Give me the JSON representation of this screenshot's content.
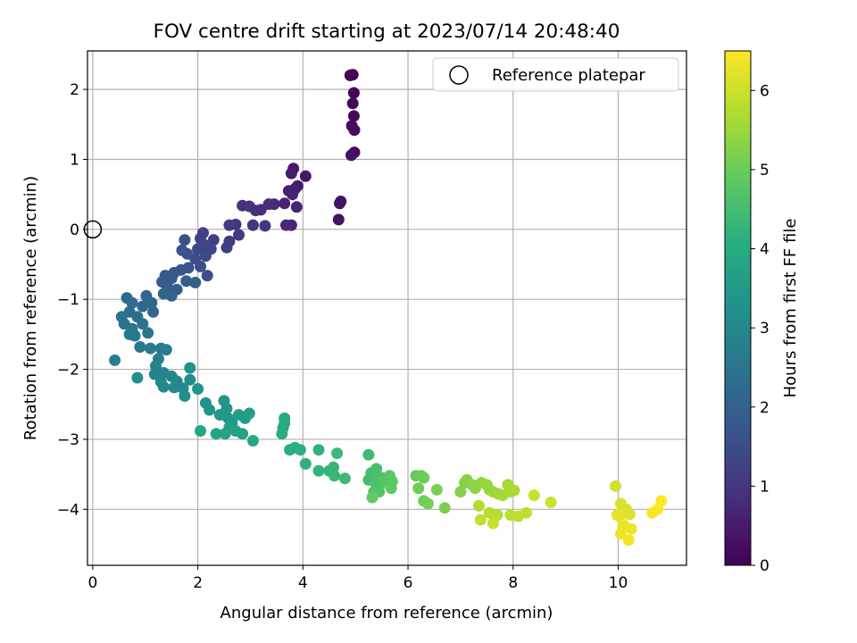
{
  "chart_data": {
    "type": "scatter",
    "title": "FOV centre drift starting at 2023/07/14 20:48:40",
    "xlabel": "Angular distance from reference (arcmin)",
    "ylabel": "Rotation from reference (arcmin)",
    "xlim": [
      -0.1,
      11.3
    ],
    "ylim": [
      -4.8,
      2.55
    ],
    "xticks": [
      0,
      2,
      4,
      6,
      8,
      10
    ],
    "yticks": [
      -4,
      -3,
      -2,
      -1,
      0,
      1,
      2
    ],
    "grid": true,
    "legend": {
      "placement": "top-right",
      "entries": [
        "Reference platepar"
      ]
    },
    "colorbar": {
      "label": "Hours from first FF file",
      "colormap": "viridis",
      "range": [
        0,
        6.5
      ],
      "ticks": [
        0,
        1,
        2,
        3,
        4,
        5,
        6
      ]
    },
    "reference_point": {
      "x": 0,
      "y": 0
    },
    "series": [
      {
        "points": [
          [
            4.9,
            2.2
          ],
          [
            4.95,
            2.21
          ],
          [
            4.97,
            1.95
          ],
          [
            4.95,
            1.8
          ],
          [
            4.97,
            1.62
          ],
          [
            4.93,
            1.48
          ],
          [
            4.98,
            1.42
          ],
          [
            4.98,
            1.1
          ],
          [
            4.92,
            1.06
          ],
          [
            4.72,
            0.4
          ],
          [
            4.7,
            0.37
          ],
          [
            4.68,
            0.14
          ],
          [
            4.05,
            0.76
          ],
          [
            3.82,
            0.87
          ],
          [
            3.78,
            0.8
          ],
          [
            3.9,
            0.62
          ],
          [
            3.85,
            0.58
          ],
          [
            3.73,
            0.55
          ],
          [
            3.8,
            0.5
          ],
          [
            3.65,
            0.37
          ],
          [
            3.88,
            0.32
          ],
          [
            3.78,
            0.06
          ],
          [
            3.68,
            0.06
          ],
          [
            3.45,
            0.36
          ],
          [
            3.35,
            0.36
          ],
          [
            3.2,
            0.28
          ],
          [
            3.1,
            0.27
          ],
          [
            2.85,
            0.34
          ],
          [
            2.98,
            0.33
          ],
          [
            3.05,
            0.06
          ],
          [
            3.28,
            0.05
          ],
          [
            2.72,
            0.07
          ],
          [
            2.6,
            0.06
          ],
          [
            2.78,
            -0.08
          ],
          [
            2.6,
            -0.17
          ],
          [
            2.55,
            -0.26
          ],
          [
            2.3,
            -0.15
          ],
          [
            2.1,
            -0.05
          ],
          [
            2.05,
            -0.13
          ],
          [
            2.12,
            -0.22
          ],
          [
            2.0,
            -0.28
          ],
          [
            2.25,
            -0.28
          ],
          [
            2.15,
            -0.38
          ],
          [
            1.95,
            -0.42
          ],
          [
            2.05,
            -0.53
          ],
          [
            2.18,
            -0.66
          ],
          [
            1.75,
            -0.15
          ],
          [
            1.8,
            -0.35
          ],
          [
            1.7,
            -0.3
          ],
          [
            1.82,
            -0.55
          ],
          [
            1.68,
            -0.58
          ],
          [
            1.55,
            -0.62
          ],
          [
            1.5,
            -0.7
          ],
          [
            1.38,
            -0.66
          ],
          [
            1.32,
            -0.75
          ],
          [
            1.42,
            -0.82
          ],
          [
            1.6,
            -0.86
          ],
          [
            1.78,
            -0.74
          ],
          [
            1.95,
            -0.76
          ],
          [
            1.5,
            -0.95
          ],
          [
            1.35,
            -0.92
          ],
          [
            1.02,
            -0.95
          ],
          [
            1.12,
            -1.05
          ],
          [
            1.15,
            -1.18
          ],
          [
            0.95,
            -1.1
          ],
          [
            0.65,
            -0.98
          ],
          [
            0.75,
            -1.05
          ],
          [
            0.7,
            -1.18
          ],
          [
            0.85,
            -1.25
          ],
          [
            0.55,
            -1.25
          ],
          [
            0.6,
            -1.35
          ],
          [
            0.95,
            -1.35
          ],
          [
            0.75,
            -1.42
          ],
          [
            0.8,
            -1.52
          ],
          [
            0.7,
            -1.5
          ],
          [
            1.05,
            -1.48
          ],
          [
            0.9,
            -1.68
          ],
          [
            1.1,
            -1.7
          ],
          [
            1.3,
            -1.7
          ],
          [
            1.4,
            -1.72
          ],
          [
            1.25,
            -1.85
          ],
          [
            0.42,
            -1.87
          ],
          [
            1.2,
            -1.95
          ],
          [
            1.35,
            -2.05
          ],
          [
            1.18,
            -2.07
          ],
          [
            1.3,
            -2.18
          ],
          [
            1.5,
            -2.1
          ],
          [
            1.6,
            -2.17
          ],
          [
            1.35,
            -2.25
          ],
          [
            1.55,
            -2.26
          ],
          [
            1.72,
            -2.27
          ],
          [
            1.85,
            -2.15
          ],
          [
            1.75,
            -2.38
          ],
          [
            0.85,
            -2.12
          ],
          [
            1.85,
            -1.98
          ],
          [
            2.0,
            -2.28
          ],
          [
            2.15,
            -2.48
          ],
          [
            2.22,
            -2.58
          ],
          [
            2.5,
            -2.45
          ],
          [
            2.55,
            -2.56
          ],
          [
            2.42,
            -2.65
          ],
          [
            2.58,
            -2.7
          ],
          [
            2.65,
            -2.77
          ],
          [
            2.78,
            -2.65
          ],
          [
            2.9,
            -2.7
          ],
          [
            2.98,
            -2.63
          ],
          [
            2.6,
            -2.83
          ],
          [
            2.72,
            -2.88
          ],
          [
            2.85,
            -2.92
          ],
          [
            2.52,
            -2.92
          ],
          [
            2.35,
            -2.92
          ],
          [
            2.05,
            -2.88
          ],
          [
            3.05,
            -3.02
          ],
          [
            3.65,
            -2.7
          ],
          [
            3.65,
            -2.77
          ],
          [
            3.62,
            -2.84
          ],
          [
            3.6,
            -2.92
          ],
          [
            3.75,
            -3.15
          ],
          [
            3.85,
            -3.12
          ],
          [
            3.95,
            -3.15
          ],
          [
            4.05,
            -3.35
          ],
          [
            4.3,
            -3.15
          ],
          [
            4.3,
            -3.45
          ],
          [
            4.5,
            -3.45
          ],
          [
            4.58,
            -3.4
          ],
          [
            4.6,
            -3.52
          ],
          [
            4.65,
            -3.2
          ],
          [
            4.8,
            -3.56
          ],
          [
            5.25,
            -3.22
          ],
          [
            5.25,
            -3.58
          ],
          [
            5.3,
            -3.48
          ],
          [
            5.35,
            -3.5
          ],
          [
            5.4,
            -3.42
          ],
          [
            5.38,
            -3.62
          ],
          [
            5.45,
            -3.68
          ],
          [
            5.5,
            -3.55
          ],
          [
            5.35,
            -3.75
          ],
          [
            5.45,
            -3.75
          ],
          [
            5.55,
            -3.6
          ],
          [
            5.65,
            -3.52
          ],
          [
            5.7,
            -3.6
          ],
          [
            5.68,
            -3.7
          ],
          [
            5.32,
            -3.83
          ],
          [
            6.15,
            -3.52
          ],
          [
            6.25,
            -3.52
          ],
          [
            6.3,
            -3.55
          ],
          [
            6.2,
            -3.7
          ],
          [
            6.3,
            -3.88
          ],
          [
            6.38,
            -3.92
          ],
          [
            6.55,
            -3.72
          ],
          [
            6.7,
            -3.98
          ],
          [
            7.0,
            -3.75
          ],
          [
            7.08,
            -3.62
          ],
          [
            7.12,
            -3.58
          ],
          [
            7.22,
            -3.65
          ],
          [
            7.28,
            -3.7
          ],
          [
            7.4,
            -3.62
          ],
          [
            7.5,
            -3.65
          ],
          [
            7.55,
            -3.72
          ],
          [
            7.62,
            -3.75
          ],
          [
            7.72,
            -3.78
          ],
          [
            7.8,
            -3.8
          ],
          [
            7.9,
            -3.65
          ],
          [
            7.95,
            -3.75
          ],
          [
            8.02,
            -3.73
          ],
          [
            7.35,
            -3.95
          ],
          [
            7.55,
            -4.05
          ],
          [
            7.7,
            -4.08
          ],
          [
            7.95,
            -4.08
          ],
          [
            8.1,
            -4.1
          ],
          [
            8.25,
            -4.05
          ],
          [
            7.38,
            -4.15
          ],
          [
            7.62,
            -4.2
          ],
          [
            8.4,
            -3.8
          ],
          [
            8.72,
            -3.9
          ],
          [
            9.95,
            -3.67
          ],
          [
            10.05,
            -3.92
          ],
          [
            10.15,
            -4.0
          ],
          [
            10.22,
            -4.07
          ],
          [
            10.02,
            -4.1
          ],
          [
            9.98,
            -4.08
          ],
          [
            10.1,
            -4.22
          ],
          [
            10.25,
            -4.28
          ],
          [
            10.05,
            -4.35
          ],
          [
            10.2,
            -4.44
          ],
          [
            10.65,
            -4.05
          ],
          [
            10.75,
            -4.0
          ],
          [
            10.82,
            -3.88
          ]
        ]
      }
    ]
  }
}
